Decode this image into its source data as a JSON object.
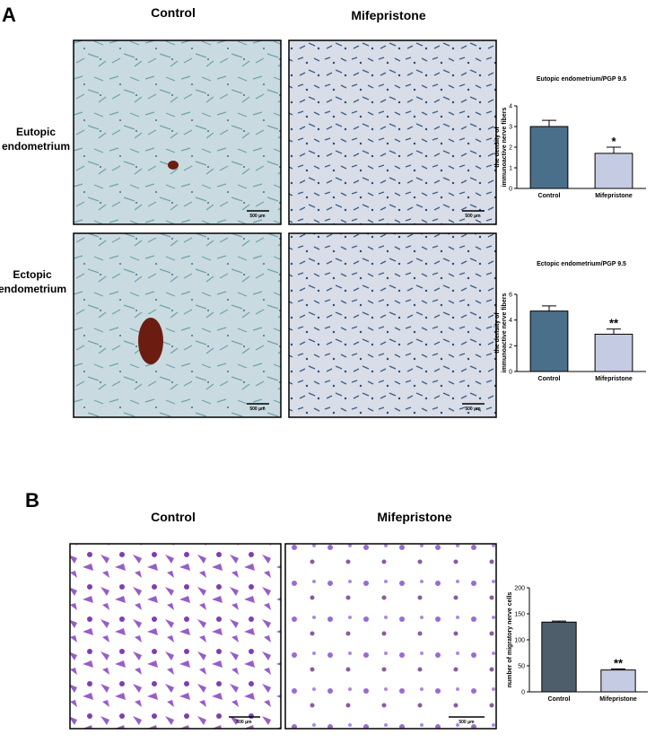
{
  "figure": {
    "panel_labels": [
      "A",
      "B"
    ],
    "column_headers": [
      "Control",
      "Mifepristone",
      "Control",
      "Mifepristone"
    ],
    "row_labels": [
      [
        "Eutopic",
        "endometrium"
      ],
      [
        "Ectopic",
        "endometrium"
      ]
    ],
    "scale_bar_labels": [
      "500 μm",
      "500 μm",
      "500 μm",
      "500 μm",
      "500 μm",
      "500 μm"
    ]
  },
  "chart_data": [
    {
      "type": "bar",
      "title": "Eutopic endometrium/PGP 9.5",
      "ylabel": [
        "the density of",
        "immunoactive nerve fibers"
      ],
      "categories": [
        "Control",
        "Mifepristone"
      ],
      "values": [
        3.0,
        1.7
      ],
      "errors": [
        0.3,
        0.3
      ],
      "colors": [
        "#4a6f8a",
        "#c5cbe3"
      ],
      "sig_labels": [
        null,
        "*"
      ],
      "ylim": [
        0,
        4
      ],
      "yticks": [
        0,
        1,
        2,
        3,
        4
      ]
    },
    {
      "type": "bar",
      "title": "Ectopic endometrium/PGP 9.5",
      "ylabel": [
        "the density of",
        "immunoactive nerve fibers"
      ],
      "categories": [
        "Control",
        "Mifepristone"
      ],
      "values": [
        4.7,
        2.9
      ],
      "errors": [
        0.4,
        0.4
      ],
      "colors": [
        "#4a6f8a",
        "#c5cbe3"
      ],
      "sig_labels": [
        null,
        "**"
      ],
      "ylim": [
        0,
        6
      ],
      "yticks": [
        0,
        2,
        4,
        6
      ]
    },
    {
      "type": "bar",
      "ylabel": [
        "number of migratory nerve cells"
      ],
      "categories": [
        "Control",
        "Mifepristone"
      ],
      "values": [
        134,
        42
      ],
      "errors": [
        2,
        2
      ],
      "colors": [
        "#4e5e6b",
        "#c5cbe3"
      ],
      "sig_labels": [
        null,
        "**"
      ],
      "ylim": [
        0,
        200
      ],
      "yticks": [
        0,
        50,
        100,
        150,
        200
      ]
    }
  ]
}
